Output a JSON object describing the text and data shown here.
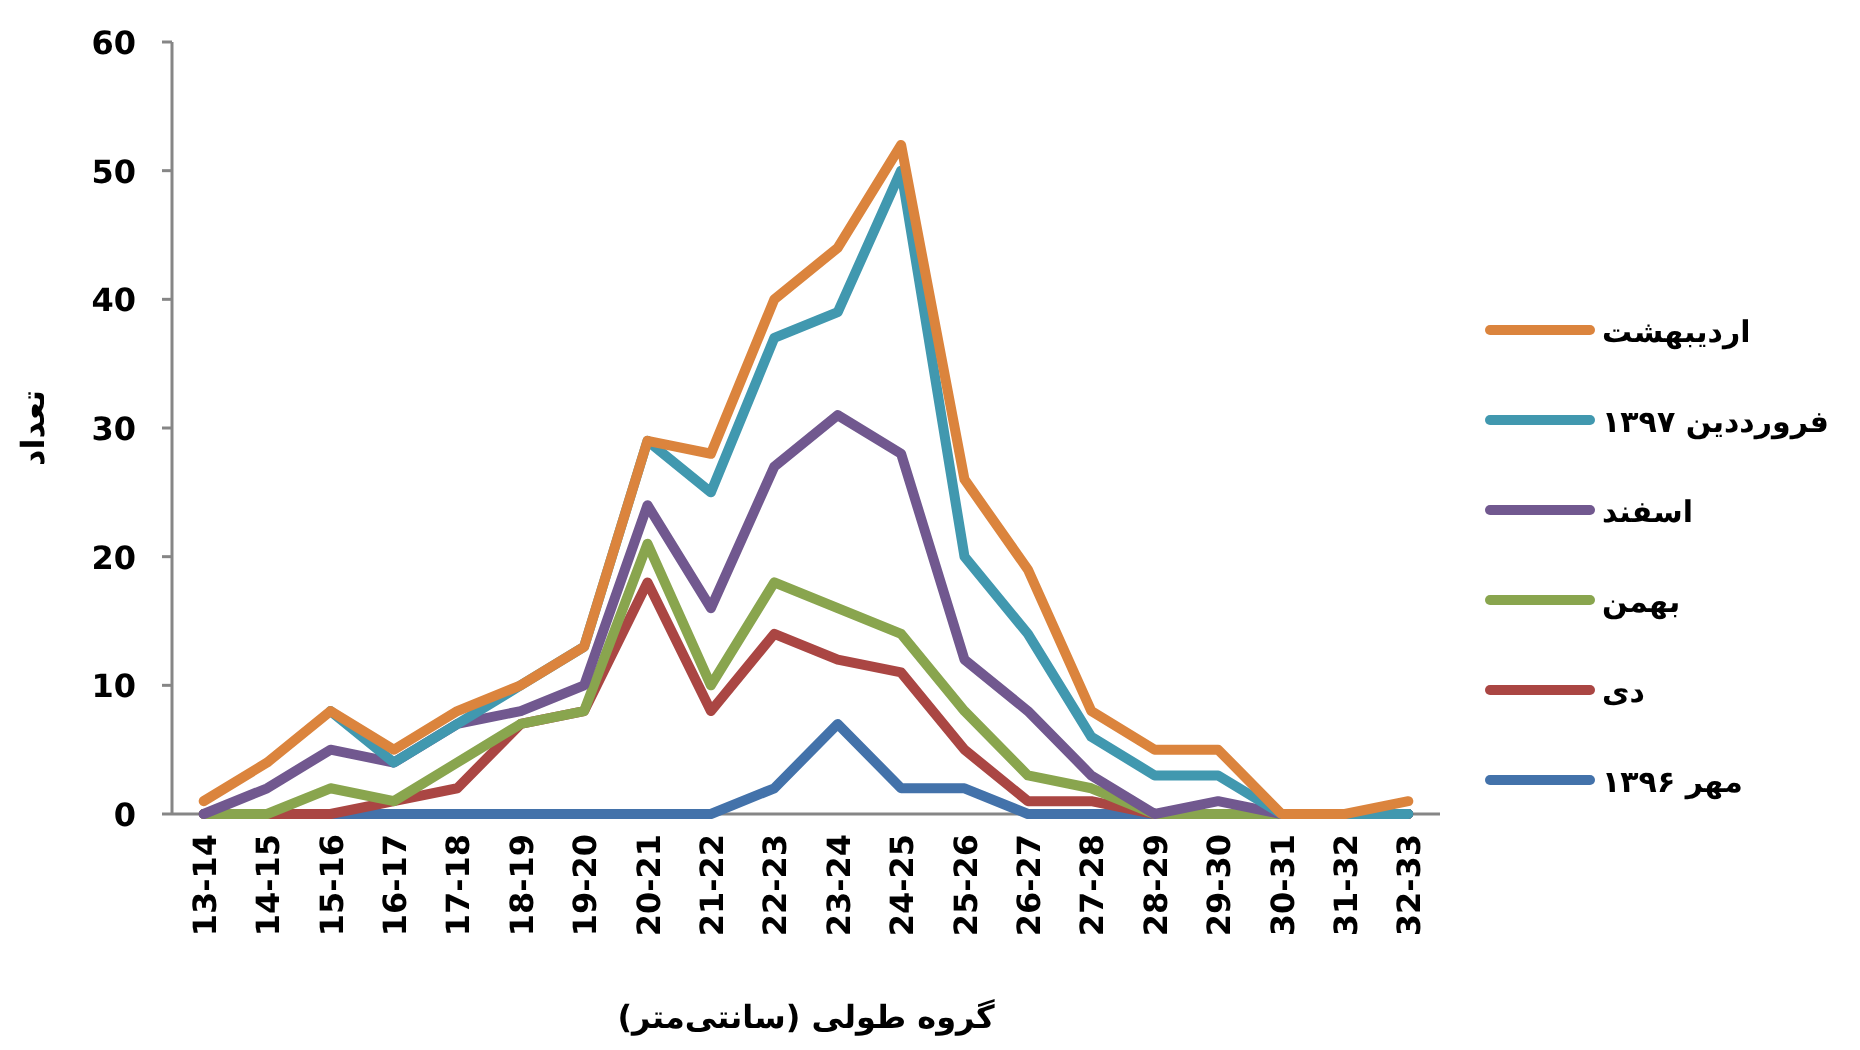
{
  "chart_data": {
    "type": "line",
    "xlabel": "گروه طولی (سانتی‌متر)",
    "ylabel": "تعداد",
    "categories": [
      "13-14",
      "14-15",
      "15-16",
      "16-17",
      "17-18",
      "18-19",
      "19-20",
      "20-21",
      "21-22",
      "22-23",
      "23-24",
      "24-25",
      "25-26",
      "26-27",
      "27-28",
      "28-29",
      "29-30",
      "30-31",
      "31-32",
      "32-33"
    ],
    "series": [
      {
        "name": "مهر ۱۳۹۶",
        "color": "#4372aa",
        "values": [
          0,
          0,
          0,
          0,
          0,
          0,
          0,
          0,
          0,
          2,
          7,
          2,
          2,
          0,
          0,
          0,
          0,
          0,
          0,
          0
        ]
      },
      {
        "name": "دی",
        "color": "#aa4643",
        "values": [
          0,
          0,
          0,
          1,
          2,
          7,
          8,
          18,
          8,
          14,
          12,
          11,
          5,
          1,
          1,
          0,
          0,
          0,
          0,
          0
        ]
      },
      {
        "name": "بهمن",
        "color": "#89a54e",
        "values": [
          0,
          0,
          2,
          1,
          4,
          7,
          8,
          21,
          10,
          18,
          16,
          14,
          8,
          3,
          2,
          0,
          0,
          0,
          0,
          0
        ]
      },
      {
        "name": "اسفند",
        "color": "#71588f",
        "values": [
          0,
          2,
          5,
          4,
          7,
          8,
          10,
          24,
          16,
          27,
          31,
          28,
          12,
          8,
          3,
          0,
          1,
          0,
          0,
          0
        ]
      },
      {
        "name": "فرورددین ۱۳۹۷",
        "color": "#4198af",
        "values": [
          null,
          null,
          8,
          4,
          7,
          10,
          13,
          29,
          25,
          37,
          39,
          50,
          20,
          14,
          6,
          3,
          3,
          0,
          0,
          0
        ]
      },
      {
        "name": "اردیبهشت",
        "color": "#db843d",
        "values": [
          1,
          4,
          8,
          5,
          8,
          10,
          13,
          29,
          28,
          40,
          44,
          52,
          26,
          19,
          8,
          5,
          5,
          0,
          0,
          1
        ]
      }
    ],
    "ylim": [
      0,
      60
    ],
    "yticks": [
      0,
      10,
      20,
      30,
      40,
      50,
      60
    ],
    "legend": "right",
    "grid": false
  }
}
